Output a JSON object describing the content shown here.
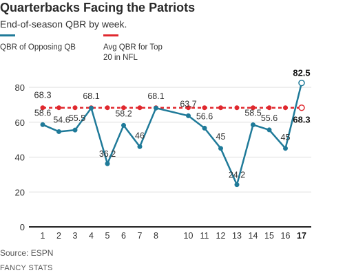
{
  "header": {
    "title": "Quarterbacks Facing the Patriots",
    "subtitle": "End-of-season QBR by week."
  },
  "footer": {
    "source": "Source: ESPN",
    "credit": "FANCY STATS"
  },
  "colors": {
    "opposing_qb": "#1f7a99",
    "avg_top20": "#e0282e",
    "axis": "#222222",
    "grid": "#dddddd"
  },
  "chart_data": {
    "type": "line",
    "title": "Quarterbacks Facing the Patriots",
    "subtitle": "End-of-season QBR by week.",
    "xlabel": "",
    "ylabel": "",
    "ylim": [
      0,
      85
    ],
    "yticks": [
      0,
      20,
      40,
      60,
      80
    ],
    "xticks": [
      "1",
      "2",
      "3",
      "4",
      "5",
      "6",
      "7",
      "8",
      "10",
      "11",
      "12",
      "13",
      "14",
      "15",
      "16",
      "17"
    ],
    "grid": "horizontal",
    "legend_position": "top",
    "series": [
      {
        "name": "QBR of Opposing QB",
        "x": [
          1,
          2,
          3,
          4,
          5,
          6,
          7,
          8,
          10,
          11,
          12,
          13,
          14,
          15,
          16,
          17
        ],
        "y": [
          58.6,
          54.6,
          55.5,
          68.1,
          36.2,
          58.2,
          46,
          68.1,
          63.7,
          56.6,
          45,
          24.2,
          58.5,
          55.6,
          45,
          82.5
        ],
        "labels": [
          "58.6",
          "54.6",
          "55.5",
          "68.1",
          "36.2",
          "58.2",
          "46",
          "68.1",
          "63.7",
          "56.6",
          "45",
          "24.2",
          "58.5",
          "55.6",
          "45",
          "82.5"
        ]
      },
      {
        "name": "Avg QBR for Top 20 in NFL",
        "x": [
          1,
          2,
          3,
          4,
          5,
          6,
          7,
          8,
          10,
          11,
          12,
          13,
          14,
          15,
          16,
          17
        ],
        "y": [
          68.3,
          68.3,
          68.3,
          68.3,
          68.3,
          68.3,
          68.3,
          68.3,
          68.3,
          68.3,
          68.3,
          68.3,
          68.3,
          68.3,
          68.3,
          68.3
        ],
        "labels": [
          "68.3",
          "",
          "",
          "",
          "",
          "",
          "",
          "",
          "",
          "",
          "",
          "",
          "",
          "",
          "",
          "68.3"
        ]
      }
    ],
    "highlight_x": "17"
  }
}
